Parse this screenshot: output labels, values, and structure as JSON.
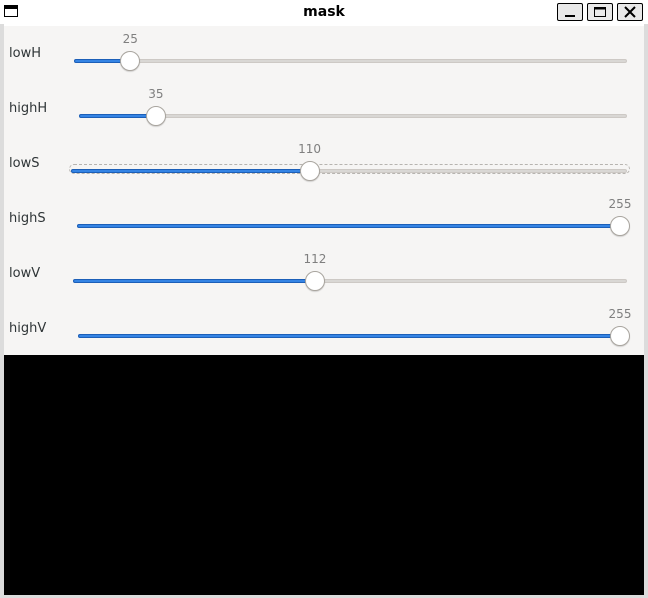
{
  "window": {
    "title": "mask",
    "icons": {
      "app": "window-icon",
      "minimize": "minimize-icon",
      "maximize": "maximize-icon",
      "close": "close-icon"
    }
  },
  "trackbars": {
    "min": 0,
    "max": 255,
    "items": [
      {
        "name": "lowH",
        "value": 25
      },
      {
        "name": "highH",
        "value": 35
      },
      {
        "name": "lowS",
        "value": 110
      },
      {
        "name": "highS",
        "value": 255
      },
      {
        "name": "lowV",
        "value": 112
      },
      {
        "name": "highV",
        "value": 255
      }
    ]
  },
  "colors": {
    "accent": "#3584e4",
    "panel": "#f6f5f4",
    "image": "#000000"
  }
}
